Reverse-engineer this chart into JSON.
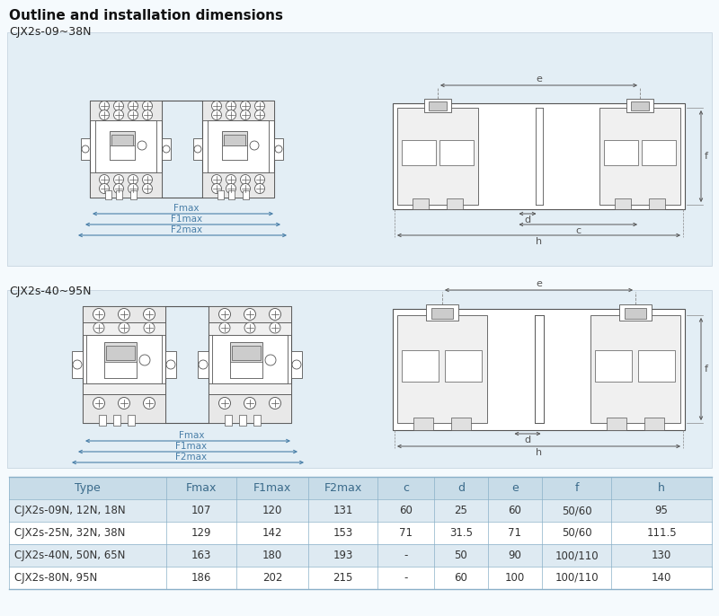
{
  "title": "Outline and installation dimensions",
  "section1_label": "CJX2s-09~38N",
  "section2_label": "CJX2s-40~95N",
  "bg_color": "#e3eef5",
  "page_bg": "#f5fafd",
  "table_headers": [
    "Type",
    "Fmax",
    "F1max",
    "F2max",
    "c",
    "d",
    "e",
    "f",
    "h"
  ],
  "table_rows": [
    [
      "CJX2s-09N, 12N, 18N",
      "107",
      "120",
      "131",
      "60",
      "25",
      "60",
      "50/60",
      "95"
    ],
    [
      "CJX2s-25N, 32N, 38N",
      "129",
      "142",
      "153",
      "71",
      "31.5",
      "71",
      "50/60",
      "111.5"
    ],
    [
      "CJX2s-40N, 50N, 65N",
      "163",
      "180",
      "193",
      "-",
      "50",
      "90",
      "100/110",
      "130"
    ],
    [
      "CJX2s-80N, 95N",
      "186",
      "202",
      "215",
      "-",
      "60",
      "100",
      "100/110",
      "140"
    ]
  ],
  "header_bg": "#c8dce8",
  "row_bg_even": "#deeaf2",
  "row_bg_odd": "#ffffff",
  "text_color": "#3a6a8a",
  "border_color": "#8ab0c8",
  "dim_color": "#4a7fa8",
  "draw_color": "#555555",
  "lc": "#555555"
}
